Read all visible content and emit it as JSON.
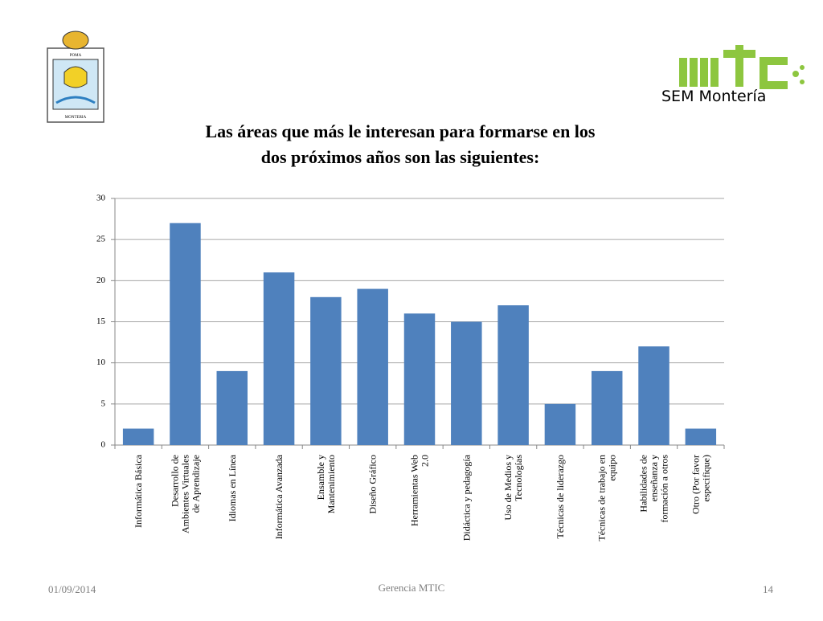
{
  "header": {
    "left_logo": [
      "POMA",
      "MONTERIA"
    ],
    "right_logo": "SEM Montería"
  },
  "chart_data": {
    "type": "bar",
    "title": "Las áreas que más le interesan para formarse en los\ndos próximos años son las siguientes:",
    "categories": [
      "Informática Básica",
      "Desarrollo de\nAmbientes Virtuales\nde Aprendizaje",
      "Idiomas en Línea",
      "Informática Avanzada",
      "Ensamble y\nMantenimiento",
      "Diseño Gráfico",
      "Herramientas Web\n2.0",
      "Didáctica y pedagogía",
      "Uso de Medios y\nTecnologías",
      "Técnicas de liderazgo",
      "Técnicas de trabajo en\nequipo",
      "Habilidades de\nenseñanza y\nformación a otros",
      "Otro (Por favor\nespecifique)"
    ],
    "values": [
      2,
      27,
      9,
      21,
      18,
      19,
      16,
      15,
      17,
      5,
      9,
      12,
      2
    ],
    "color": "#4f81bd",
    "ylim": [
      0,
      30
    ],
    "yticks": [
      0,
      5,
      10,
      15,
      20,
      25,
      30
    ],
    "grid": true
  },
  "footer": {
    "date": "01/09/2014",
    "center": "Gerencia MTIC",
    "page": "14"
  }
}
